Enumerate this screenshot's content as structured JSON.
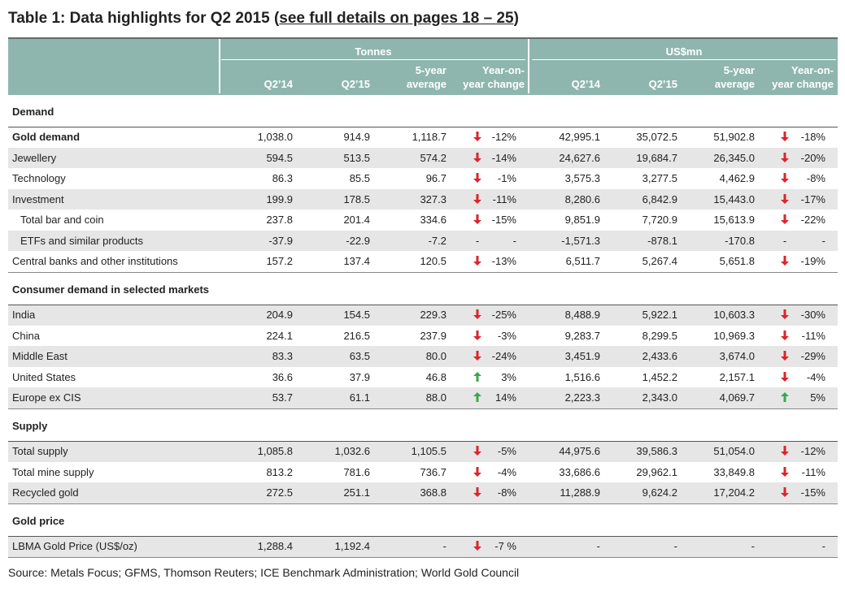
{
  "title": {
    "prefix": "Table 1: Data highlights for Q2 2015 (",
    "link": "see full details on pages 18 – 25",
    "suffix": ")"
  },
  "header": {
    "groups": [
      {
        "name": "Tonnes",
        "columns": [
          "Q2’14",
          "Q2’15",
          "5-year\naverage",
          "Year-on-\nyear change"
        ]
      },
      {
        "name": "US$mn",
        "columns": [
          "Q2’14",
          "Q2’15",
          "5-year\naverage",
          "Year-on-\nyear change"
        ]
      }
    ]
  },
  "sections": [
    {
      "title": "Demand",
      "rows": [
        {
          "label": "Gold demand",
          "bold": true,
          "shaded": false,
          "tonnes": [
            "1,038.0",
            "914.9",
            "1,118.7"
          ],
          "tonnes_yoy": {
            "arrow": "down",
            "text": "-12%"
          },
          "usd": [
            "42,995.1",
            "35,072.5",
            "51,902.8"
          ],
          "usd_yoy": {
            "arrow": "down",
            "text": "-18%"
          }
        },
        {
          "label": "Jewellery",
          "shaded": true,
          "tonnes": [
            "594.5",
            "513.5",
            "574.2"
          ],
          "tonnes_yoy": {
            "arrow": "down",
            "text": "-14%"
          },
          "usd": [
            "24,627.6",
            "19,684.7",
            "26,345.0"
          ],
          "usd_yoy": {
            "arrow": "down",
            "text": "-20%"
          }
        },
        {
          "label": "Technology",
          "shaded": false,
          "tonnes": [
            "86.3",
            "85.5",
            "96.7"
          ],
          "tonnes_yoy": {
            "arrow": "down",
            "text": "-1%"
          },
          "usd": [
            "3,575.3",
            "3,277.5",
            "4,462.9"
          ],
          "usd_yoy": {
            "arrow": "down",
            "text": "-8%"
          }
        },
        {
          "label": "Investment",
          "shaded": true,
          "tonnes": [
            "199.9",
            "178.5",
            "327.3"
          ],
          "tonnes_yoy": {
            "arrow": "down",
            "text": "-11%"
          },
          "usd": [
            "8,280.6",
            "6,842.9",
            "15,443.0"
          ],
          "usd_yoy": {
            "arrow": "down",
            "text": "-17%"
          }
        },
        {
          "label": "Total bar and coin",
          "indent": true,
          "shaded": false,
          "tonnes": [
            "237.8",
            "201.4",
            "334.6"
          ],
          "tonnes_yoy": {
            "arrow": "down",
            "text": "-15%"
          },
          "usd": [
            "9,851.9",
            "7,720.9",
            "15,613.9"
          ],
          "usd_yoy": {
            "arrow": "down",
            "text": "-22%"
          }
        },
        {
          "label": "ETFs and similar products",
          "indent": true,
          "shaded": true,
          "tonnes": [
            "-37.9",
            "-22.9",
            "-7.2"
          ],
          "tonnes_yoy": {
            "arrow": "-",
            "text": "-"
          },
          "usd": [
            "-1,571.3",
            "-878.1",
            "-170.8"
          ],
          "usd_yoy": {
            "arrow": "-",
            "text": "-"
          }
        },
        {
          "label": "Central banks and other institutions",
          "shaded": false,
          "tonnes": [
            "157.2",
            "137.4",
            "120.5"
          ],
          "tonnes_yoy": {
            "arrow": "down",
            "text": "-13%"
          },
          "usd": [
            "6,511.7",
            "5,267.4",
            "5,651.8"
          ],
          "usd_yoy": {
            "arrow": "down",
            "text": "-19%"
          }
        }
      ]
    },
    {
      "title": "Consumer demand in selected markets",
      "rows": [
        {
          "label": "India",
          "shaded": true,
          "tonnes": [
            "204.9",
            "154.5",
            "229.3"
          ],
          "tonnes_yoy": {
            "arrow": "down",
            "text": "-25%"
          },
          "usd": [
            "8,488.9",
            "5,922.1",
            "10,603.3"
          ],
          "usd_yoy": {
            "arrow": "down",
            "text": "-30%"
          }
        },
        {
          "label": "China",
          "shaded": false,
          "tonnes": [
            "224.1",
            "216.5",
            "237.9"
          ],
          "tonnes_yoy": {
            "arrow": "down",
            "text": "-3%"
          },
          "usd": [
            "9,283.7",
            "8,299.5",
            "10,969.3"
          ],
          "usd_yoy": {
            "arrow": "down",
            "text": "-11%"
          }
        },
        {
          "label": "Middle East",
          "shaded": true,
          "tonnes": [
            "83.3",
            "63.5",
            "80.0"
          ],
          "tonnes_yoy": {
            "arrow": "down",
            "text": "-24%"
          },
          "usd": [
            "3,451.9",
            "2,433.6",
            "3,674.0"
          ],
          "usd_yoy": {
            "arrow": "down",
            "text": "-29%"
          }
        },
        {
          "label": "United States",
          "shaded": false,
          "tonnes": [
            "36.6",
            "37.9",
            "46.8"
          ],
          "tonnes_yoy": {
            "arrow": "up",
            "text": "3%"
          },
          "usd": [
            "1,516.6",
            "1,452.2",
            "2,157.1"
          ],
          "usd_yoy": {
            "arrow": "down",
            "text": "-4%"
          }
        },
        {
          "label": "Europe ex CIS",
          "shaded": true,
          "tonnes": [
            "53.7",
            "61.1",
            "88.0"
          ],
          "tonnes_yoy": {
            "arrow": "up",
            "text": "14%"
          },
          "usd": [
            "2,223.3",
            "2,343.0",
            "4,069.7"
          ],
          "usd_yoy": {
            "arrow": "up",
            "text": "5%"
          }
        }
      ]
    },
    {
      "title": "Supply",
      "rows": [
        {
          "label": "Total supply",
          "shaded": true,
          "tonnes": [
            "1,085.8",
            "1,032.6",
            "1,105.5"
          ],
          "tonnes_yoy": {
            "arrow": "down",
            "text": "-5%"
          },
          "usd": [
            "44,975.6",
            "39,586.3",
            "51,054.0"
          ],
          "usd_yoy": {
            "arrow": "down",
            "text": "-12%"
          }
        },
        {
          "label": "Total mine supply",
          "shaded": false,
          "tonnes": [
            "813.2",
            "781.6",
            "736.7"
          ],
          "tonnes_yoy": {
            "arrow": "down",
            "text": "-4%"
          },
          "usd": [
            "33,686.6",
            "29,962.1",
            "33,849.8"
          ],
          "usd_yoy": {
            "arrow": "down",
            "text": "-11%"
          }
        },
        {
          "label": "Recycled gold",
          "shaded": true,
          "tonnes": [
            "272.5",
            "251.1",
            "368.8"
          ],
          "tonnes_yoy": {
            "arrow": "down",
            "text": "-8%"
          },
          "usd": [
            "11,288.9",
            "9,624.2",
            "17,204.2"
          ],
          "usd_yoy": {
            "arrow": "down",
            "text": "-15%"
          }
        }
      ]
    },
    {
      "title": "Gold price",
      "rows": [
        {
          "label": "LBMA Gold Price (US$/oz)",
          "shaded": true,
          "tonnes": [
            "1,288.4",
            "1,192.4",
            "-"
          ],
          "tonnes_yoy": {
            "arrow": "down",
            "text": "-7 %"
          },
          "usd": [
            "-",
            "-",
            "-"
          ],
          "usd_yoy": {
            "arrow": null,
            "text": "-"
          }
        }
      ]
    }
  ],
  "source": "Source: Metals Focus; GFMS, Thomson Reuters; ICE Benchmark Administration; World Gold Council"
}
